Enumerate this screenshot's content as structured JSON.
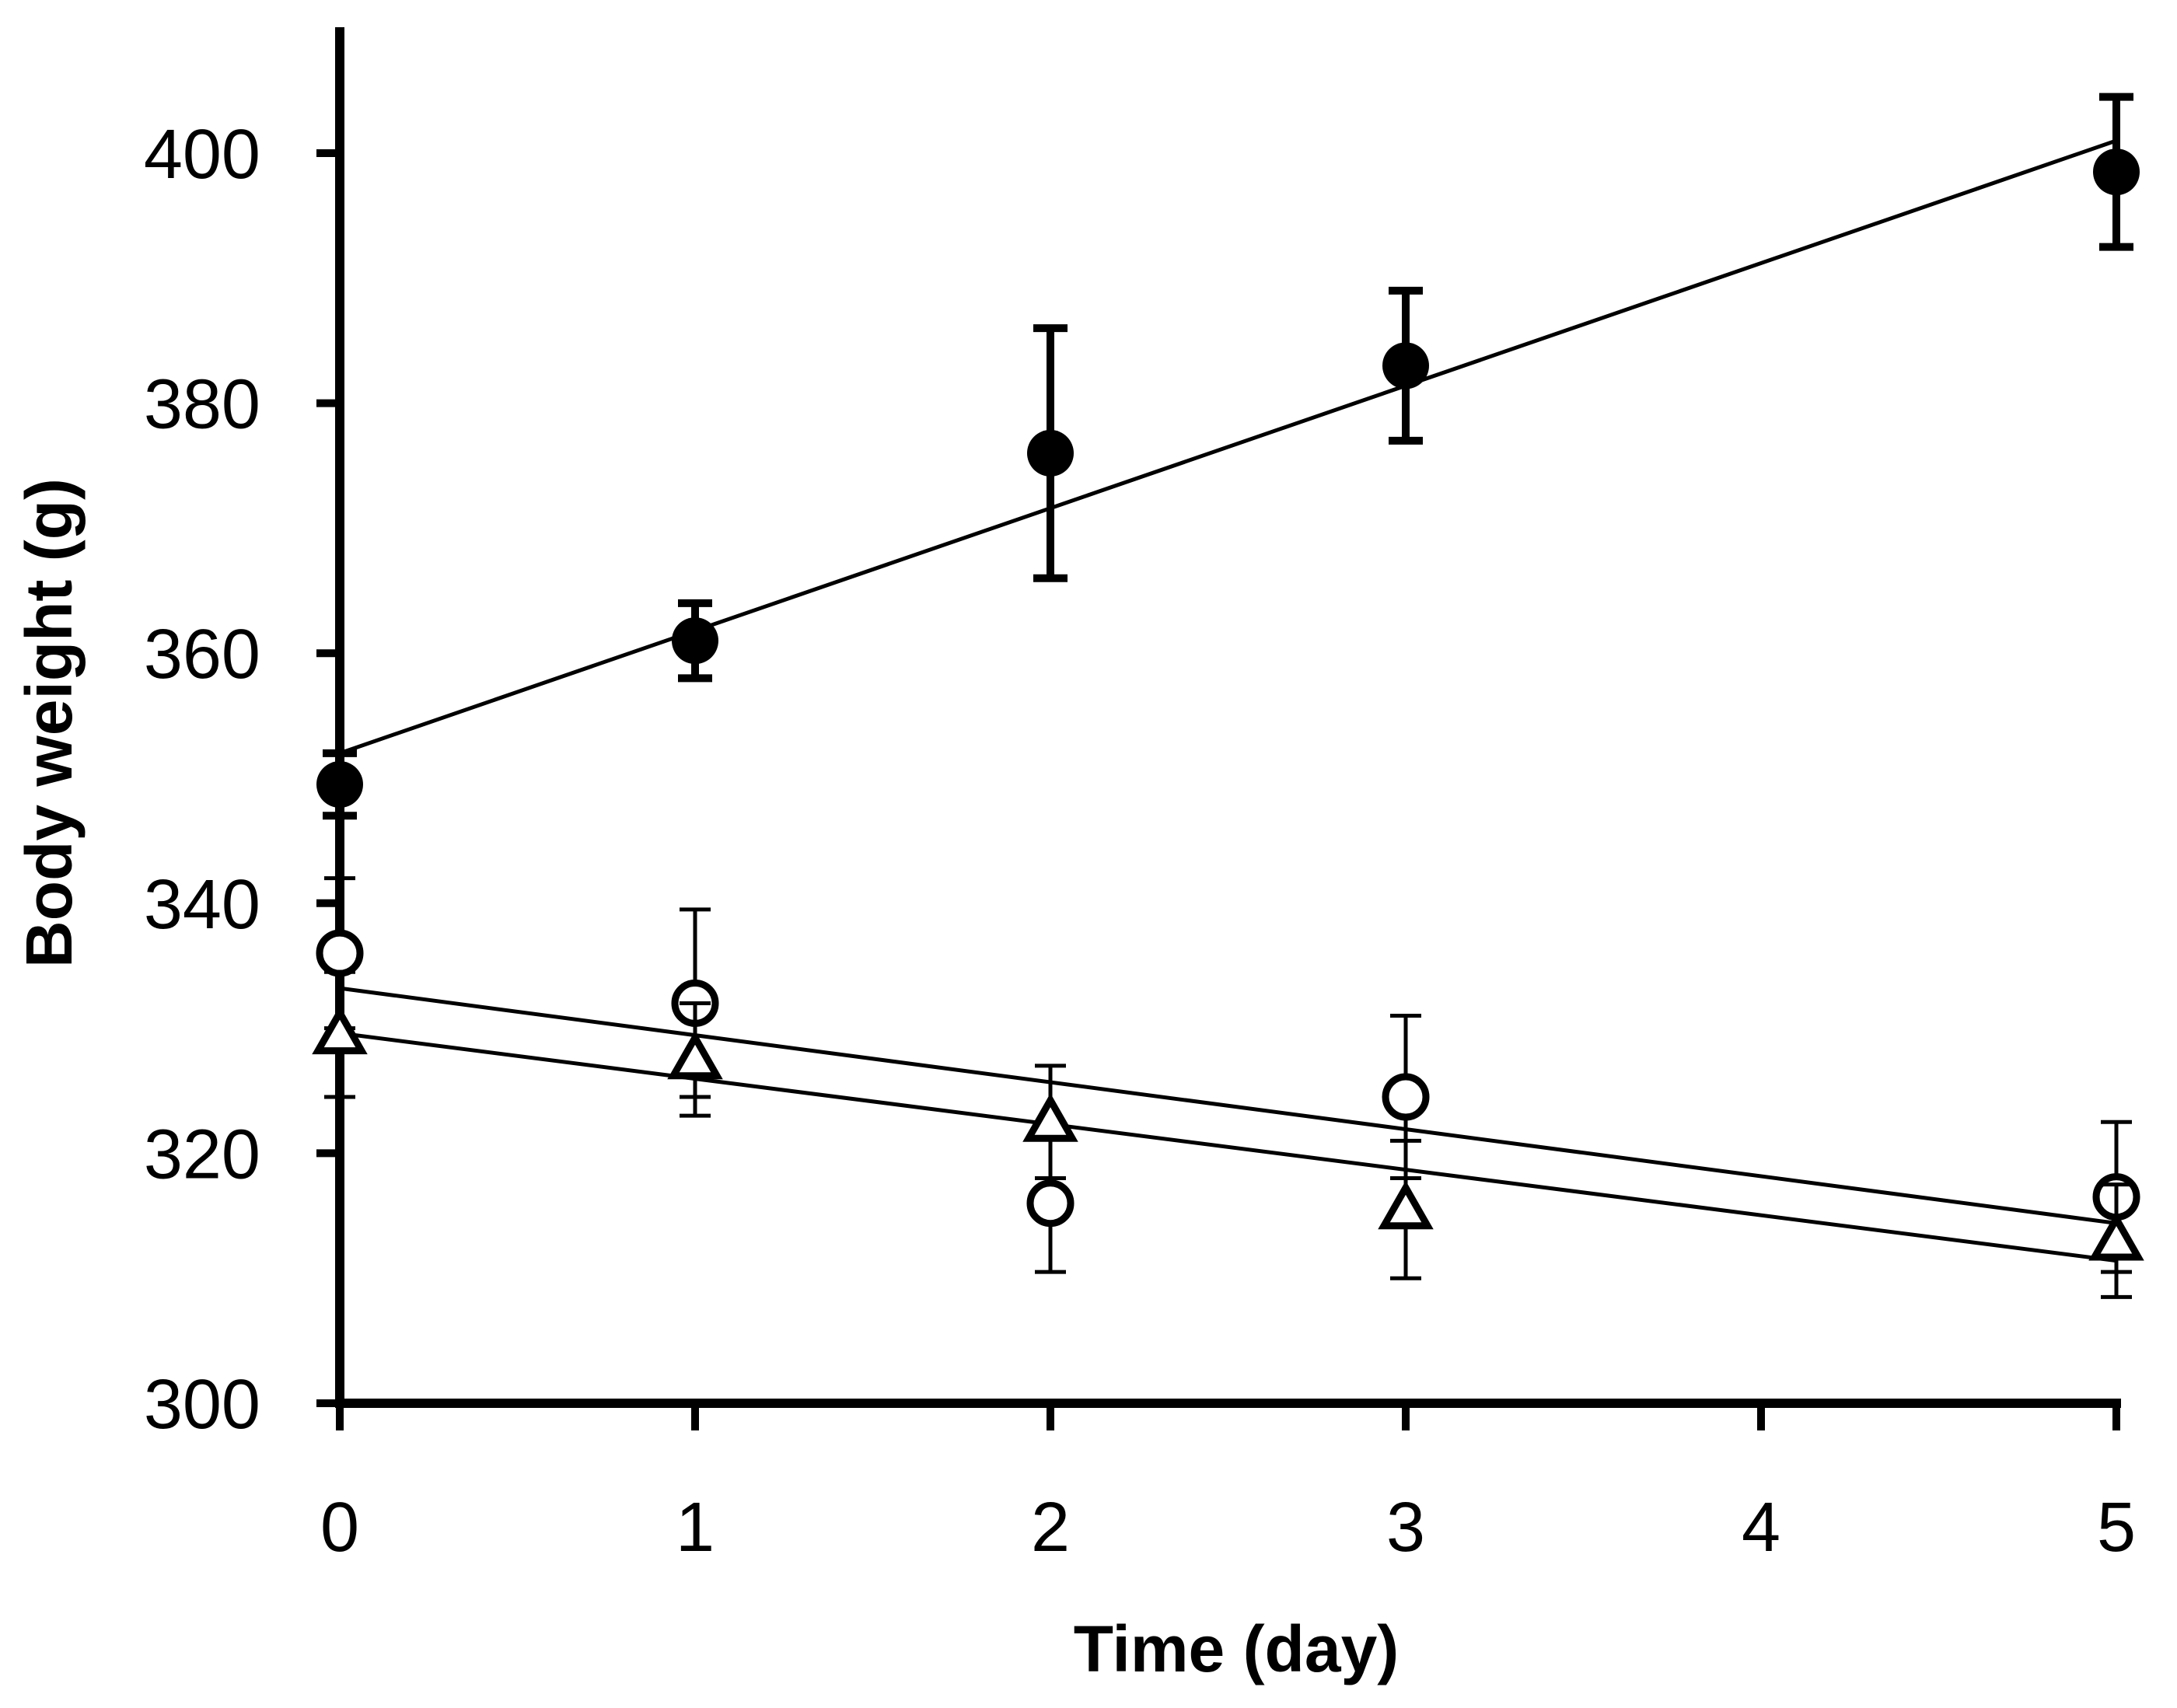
{
  "chart_data": {
    "type": "scatter",
    "title": "",
    "xlabel": "Time (day)",
    "ylabel": "Body weight (g)",
    "xlim": [
      0,
      5
    ],
    "ylim": [
      300,
      410
    ],
    "xticks": [
      0,
      1,
      2,
      3,
      4,
      5
    ],
    "yticks": [
      300,
      320,
      340,
      360,
      380,
      400
    ],
    "grid": false,
    "legend": "none",
    "series": [
      {
        "name": "filled circles",
        "marker": "filled-circle",
        "x": [
          0,
          1,
          2,
          3,
          5
        ],
        "values": [
          349.5,
          361,
          376,
          383,
          398.5
        ],
        "error": [
          2.5,
          3,
          10,
          6,
          6
        ],
        "fit": {
          "intercept": 352,
          "slope": 9.8
        }
      },
      {
        "name": "open circles",
        "marker": "open-circle",
        "x": [
          0,
          1,
          2,
          3,
          5
        ],
        "values": [
          336,
          332,
          316,
          324.5,
          316.5
        ],
        "error": [
          6,
          7.5,
          5.5,
          6.5,
          6
        ],
        "fit": {
          "intercept": 333.2,
          "slope": -3.76
        }
      },
      {
        "name": "open triangles",
        "marker": "open-triangle",
        "x": [
          0,
          1,
          2,
          3,
          5
        ],
        "values": [
          329.5,
          327.5,
          322.5,
          315.5,
          313
        ],
        "error": [
          5,
          4.5,
          4.5,
          5.5,
          4.5
        ],
        "fit": {
          "intercept": 329.6,
          "slope": -3.64
        }
      }
    ]
  }
}
